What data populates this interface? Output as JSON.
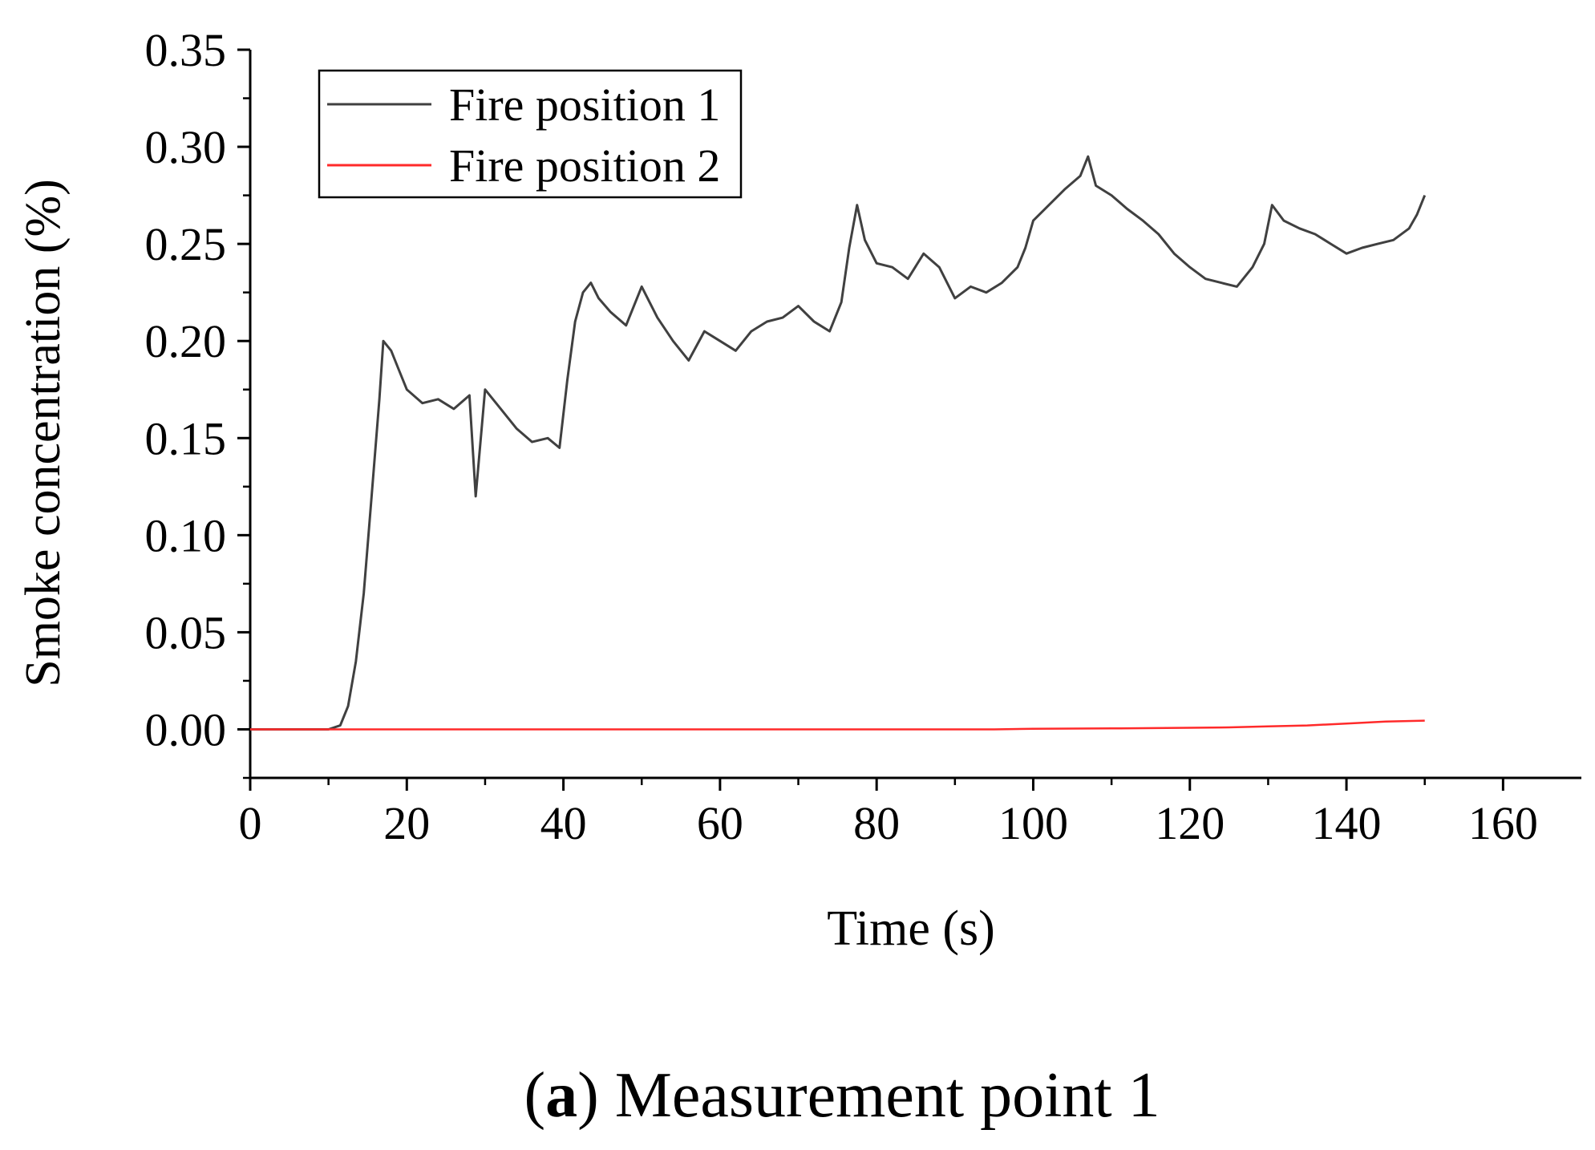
{
  "chart_data": {
    "type": "line",
    "xlabel": "Time (s)",
    "ylabel": "Smoke concentration (%)",
    "xlim": [
      0,
      170
    ],
    "ylim": [
      -0.025,
      0.35
    ],
    "xticks": [
      0,
      20,
      40,
      60,
      80,
      100,
      120,
      140,
      160
    ],
    "xtick_labels": [
      "0",
      "20",
      "40",
      "60",
      "80",
      "100",
      "120",
      "140",
      "160"
    ],
    "yticks": [
      0.0,
      0.05,
      0.1,
      0.15,
      0.2,
      0.25,
      0.3,
      0.35
    ],
    "ytick_labels": [
      "0.00",
      "0.05",
      "0.10",
      "0.15",
      "0.20",
      "0.25",
      "0.30",
      "0.35"
    ],
    "grid": false,
    "legend_position": "top-left",
    "series": [
      {
        "name": "Fire position 1",
        "color": "#404040",
        "x": [
          0,
          5,
          10,
          11.5,
          12.5,
          13.5,
          14.5,
          15.5,
          16.5,
          17,
          18,
          19,
          20,
          22,
          24,
          26,
          28,
          28.8,
          30,
          32,
          34,
          36,
          38,
          39.5,
          40.5,
          41.5,
          42.5,
          43.5,
          44.5,
          46,
          48,
          50,
          52,
          54,
          56,
          58,
          60,
          62,
          64,
          66,
          68,
          70,
          72,
          74,
          75.5,
          76.5,
          77.5,
          78.5,
          80,
          82,
          84,
          86,
          88,
          90,
          92,
          94,
          96,
          98,
          99,
          100,
          102,
          104,
          106,
          107,
          108,
          110,
          112,
          114,
          116,
          118,
          120,
          122,
          124,
          126,
          128,
          129.5,
          130.5,
          132,
          134,
          136,
          138,
          140,
          142,
          144,
          146,
          148,
          149,
          150
        ],
        "y": [
          0,
          0,
          0,
          0.002,
          0.012,
          0.035,
          0.07,
          0.12,
          0.17,
          0.2,
          0.195,
          0.185,
          0.175,
          0.168,
          0.17,
          0.165,
          0.172,
          0.12,
          0.175,
          0.165,
          0.155,
          0.148,
          0.15,
          0.145,
          0.18,
          0.21,
          0.225,
          0.23,
          0.222,
          0.215,
          0.208,
          0.228,
          0.212,
          0.2,
          0.19,
          0.205,
          0.2,
          0.195,
          0.205,
          0.21,
          0.212,
          0.218,
          0.21,
          0.205,
          0.22,
          0.248,
          0.27,
          0.252,
          0.24,
          0.238,
          0.232,
          0.245,
          0.238,
          0.222,
          0.228,
          0.225,
          0.23,
          0.238,
          0.248,
          0.262,
          0.27,
          0.278,
          0.285,
          0.295,
          0.28,
          0.275,
          0.268,
          0.262,
          0.255,
          0.245,
          0.238,
          0.232,
          0.23,
          0.228,
          0.238,
          0.25,
          0.27,
          0.262,
          0.258,
          0.255,
          0.25,
          0.245,
          0.248,
          0.25,
          0.252,
          0.258,
          0.265,
          0.275
        ]
      },
      {
        "name": "Fire position 2",
        "color": "#ff2a2a",
        "x": [
          0,
          20,
          40,
          60,
          80,
          95,
          100,
          110,
          120,
          125,
          130,
          135,
          140,
          145,
          150
        ],
        "y": [
          0,
          0,
          0,
          0,
          0,
          0,
          0.0003,
          0.0005,
          0.0008,
          0.001,
          0.0015,
          0.002,
          0.003,
          0.004,
          0.0045
        ]
      }
    ]
  },
  "caption": {
    "label": "a",
    "text": " Measurement point 1"
  }
}
